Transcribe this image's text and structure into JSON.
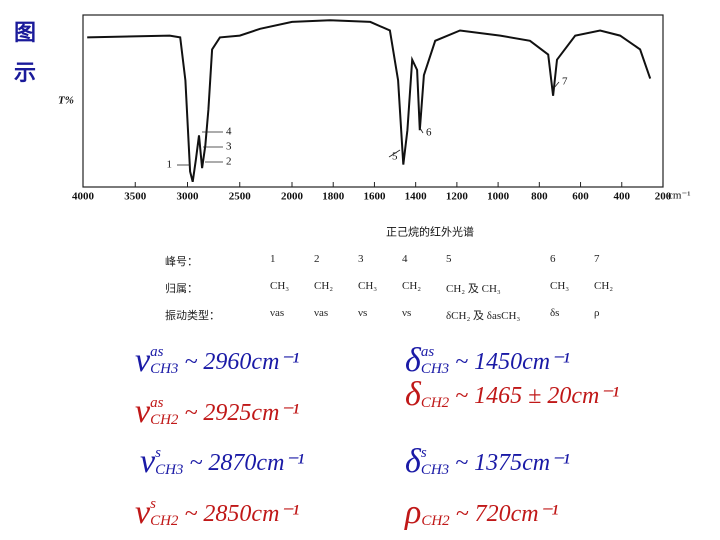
{
  "sidebar": "图示",
  "chart_data": {
    "type": "line",
    "y_label": "T%",
    "x_unit": "cm⁻¹",
    "caption": "正己烷的红外光谱",
    "color": "#111111",
    "xlim": [
      4000,
      200
    ],
    "xticks": [
      4000,
      3500,
      3000,
      2500,
      2000,
      1800,
      1600,
      1400,
      1200,
      1000,
      800,
      600,
      400,
      200
    ],
    "ylim": [
      0,
      100
    ],
    "x": [
      3960,
      3170,
      3070,
      3020,
      2975,
      2950,
      2920,
      2890,
      2860,
      2830,
      2800,
      2765,
      2690,
      2500,
      2305,
      2000,
      1815,
      1620,
      1525,
      1485,
      1460,
      1440,
      1417,
      1393,
      1380,
      1360,
      1305,
      1185,
      990,
      845,
      757,
      733,
      714,
      626,
      505,
      408,
      311,
      262
    ],
    "values": [
      87,
      88,
      87,
      62,
      9,
      3,
      16,
      30,
      11,
      24,
      45,
      80,
      87,
      88,
      92,
      96,
      97,
      96,
      91,
      62,
      13,
      33,
      74,
      68,
      33,
      65,
      85,
      91,
      88,
      85,
      77,
      53,
      74,
      88,
      91,
      88,
      80,
      63
    ],
    "annotations": [
      "1",
      "2",
      "3",
      "4",
      "5",
      "6",
      "7"
    ]
  },
  "table": {
    "rows": [
      [
        "峰号：",
        "1",
        "2",
        "3",
        "4",
        "5",
        "6",
        "7"
      ],
      [
        "归属：",
        "CH₃",
        "CH₂",
        "CH₃",
        "CH₂",
        "CH₂ 及 CH₃",
        "CH₃",
        "CH₂"
      ],
      [
        "振动类型：",
        "νas",
        "νas",
        "νs",
        "νs",
        "δCH₂ 及 δasCH₃",
        "δs",
        "ρ"
      ]
    ]
  },
  "formulas": [
    {
      "symbol": "ν",
      "sup": "as",
      "sub": "CH3",
      "text": "~ 2960cm⁻¹",
      "color": "#1a1aa6"
    },
    {
      "symbol": "ν",
      "sup": "as",
      "sub": "CH2",
      "text": "~ 2925cm⁻¹",
      "color": "#c01818"
    },
    {
      "symbol": "ν",
      "sup": "s",
      "sub": "CH3",
      "text": "~ 2870cm⁻¹",
      "color": "#1a1aa6"
    },
    {
      "symbol": "ν",
      "sup": "s",
      "sub": "CH2",
      "text": "~ 2850cm⁻¹",
      "color": "#c01818"
    },
    {
      "symbol": "δ",
      "sup": "as",
      "sub": "CH3",
      "text": "~ 1450cm⁻¹",
      "color": "#1a1aa6"
    },
    {
      "symbol": "δ",
      "sup": "",
      "sub": "CH2",
      "text": "~ 1465 ± 20cm⁻¹",
      "color": "#c01818"
    },
    {
      "symbol": "δ",
      "sup": "s",
      "sub": "CH3",
      "text": "~ 1375cm⁻¹",
      "color": "#1a1aa6"
    },
    {
      "symbol": "ρ",
      "sup": "",
      "sub": "CH2",
      "text": "~ 720cm⁻¹",
      "color": "#c01818"
    }
  ]
}
